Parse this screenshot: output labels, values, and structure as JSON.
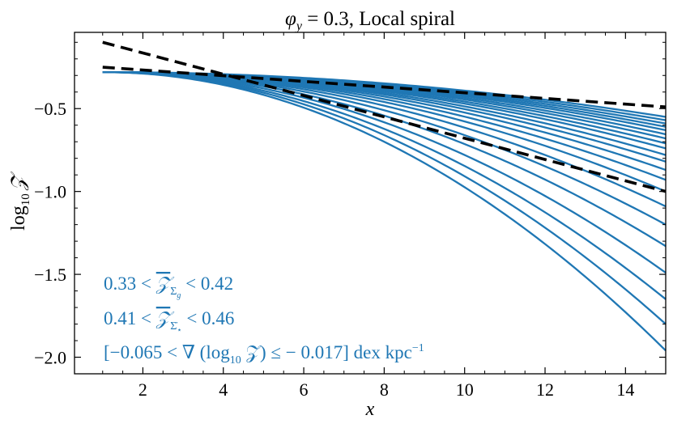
{
  "chart_data": {
    "type": "line",
    "title": "φy = 0.3, Local spiral",
    "title_parts": {
      "symbol": "φ",
      "subscript": "y",
      "rest": " = 0.3, Local spiral"
    },
    "xlabel": "x",
    "ylabel": "log10 𝒵",
    "ylabel_parts": {
      "main": "log",
      "subscript": "10",
      "symbol": "𝒵"
    },
    "xlim": [
      0.3,
      15
    ],
    "ylim": [
      -2.1,
      -0.04
    ],
    "x_ticks": [
      2,
      4,
      6,
      8,
      10,
      12,
      14
    ],
    "x_tick_labels": [
      "2",
      "4",
      "6",
      "8",
      "10",
      "12",
      "14"
    ],
    "y_ticks": [
      -2.0,
      -1.5,
      -1.0,
      -0.5
    ],
    "y_tick_labels": [
      "−2.0",
      "−1.5",
      "−1.0",
      "−0.5"
    ],
    "grid": false,
    "series_color": "#1f77b4",
    "reference_color": "#000000",
    "model_curves": {
      "x_range": [
        1,
        15
      ],
      "count": 21,
      "y_at_x1": -0.28,
      "y_at_x15": [
        -0.55,
        -0.57,
        -0.59,
        -0.61,
        -0.63,
        -0.655,
        -0.68,
        -0.71,
        -0.74,
        -0.78,
        -0.82,
        -0.87,
        -0.93,
        -1.0,
        -1.09,
        -1.2,
        -1.33,
        -1.49,
        -1.65,
        -1.8,
        -1.96
      ]
    },
    "reference_lines": [
      {
        "name": "shallow gradient",
        "x": [
          1,
          15
        ],
        "y": [
          -0.25,
          -0.49
        ]
      },
      {
        "name": "steep gradient",
        "x": [
          1,
          15
        ],
        "y": [
          -0.1,
          -1.0
        ]
      }
    ],
    "annotations": [
      {
        "lhs": "0.33 < ",
        "overline": "𝒵",
        "sub": "Σ",
        "subsub": "g",
        "rhs": " < 0.42",
        "pos": "lower-left"
      },
      {
        "lhs": "0.41 < ",
        "overline": "𝒵",
        "sub": "Σ̇",
        "subsub": "⋆",
        "rhs": " < 0.46",
        "pos": "lower-left"
      },
      {
        "text": "[−0.065 < ∇ (log",
        "sub": "10",
        "mid": " 𝒵) ≤ − 0.017] dex kpc",
        "sup": "−1",
        "pos": "lower-left"
      }
    ]
  }
}
